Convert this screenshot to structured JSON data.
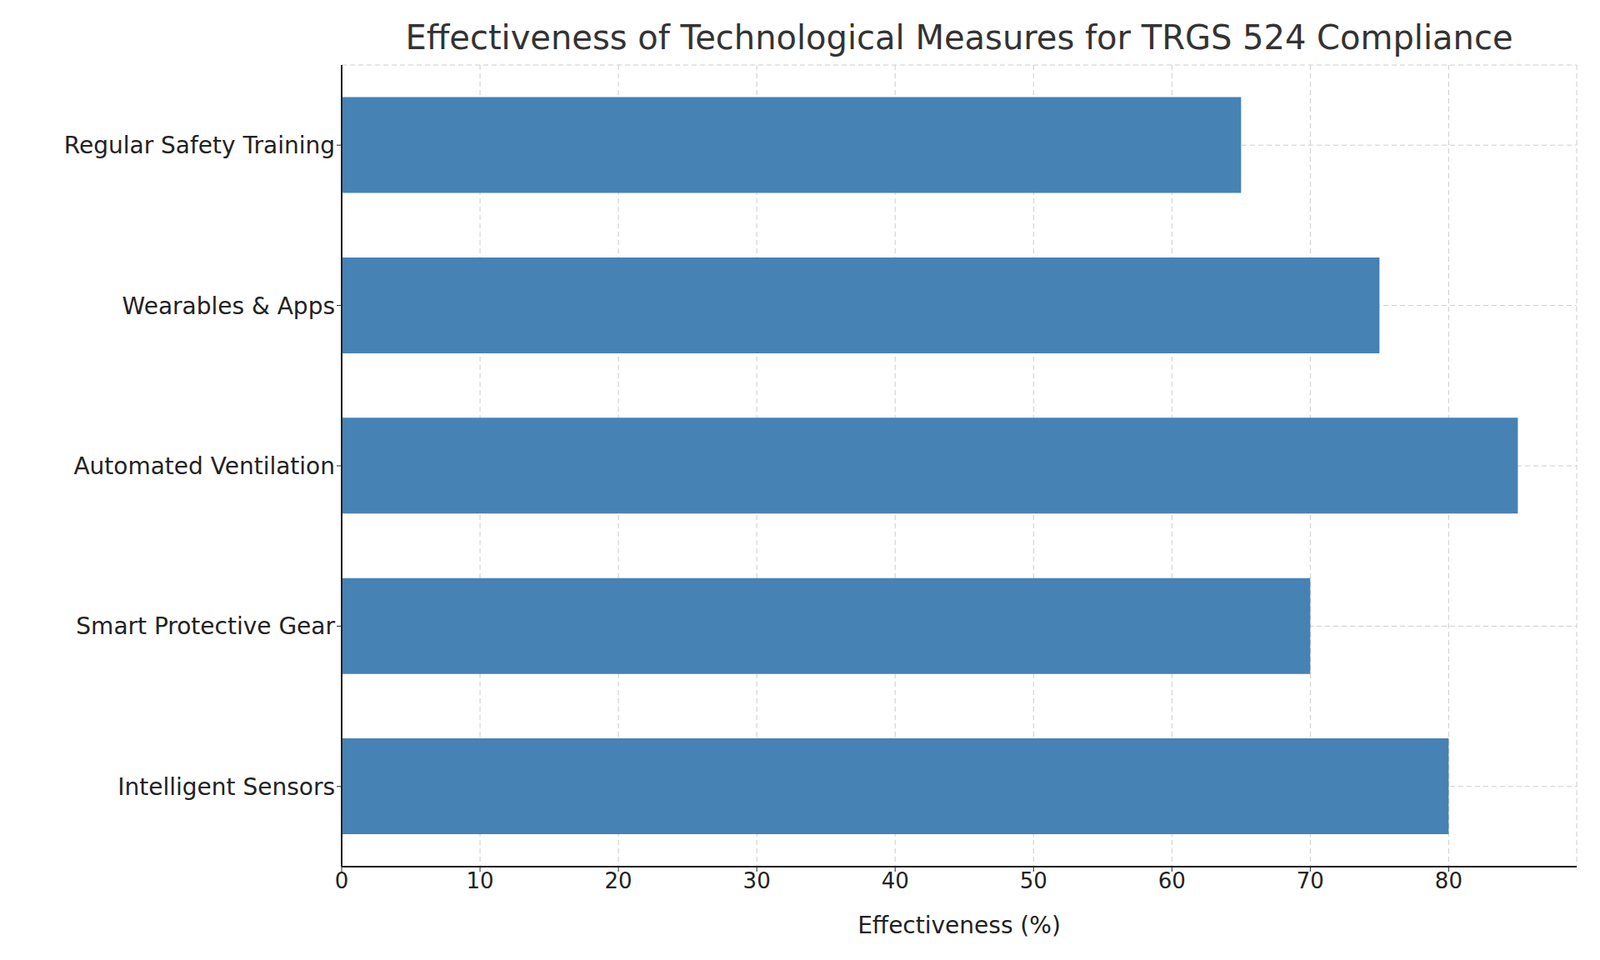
{
  "chart_data": {
    "type": "bar",
    "title": "Effectiveness of Technological Measures for TRGS 524 Compliance",
    "orientation": "horizontal",
    "categories": [
      "Intelligent Sensors",
      "Smart Protective Gear",
      "Automated Ventilation",
      "Wearables & Apps",
      "Regular Safety Training"
    ],
    "values": [
      80,
      70,
      85,
      75,
      65
    ],
    "color": "#4682b4",
    "x_label": "Effectiveness (%)",
    "xlim": [
      0,
      89.25
    ],
    "xticks": [
      0,
      10,
      20,
      30,
      40,
      50,
      60,
      70,
      80
    ],
    "grid": true
  }
}
